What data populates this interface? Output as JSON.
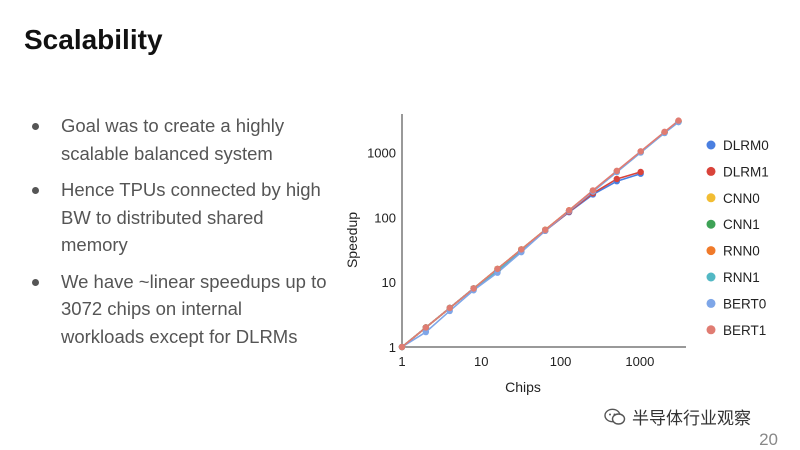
{
  "slide": {
    "title": "Scalability",
    "bullets": [
      "Goal was to create a highly scalable balanced system",
      "Hence TPUs connected by high BW to distributed shared memory",
      "We have ~linear speedups up to 3072 chips on internal workloads except for DLRMs"
    ],
    "page_number": "20",
    "watermark": "半导体行业观察"
  },
  "chart_data": {
    "type": "line",
    "xlabel": "Chips",
    "ylabel": "Speedup",
    "xscale": "log",
    "yscale": "log",
    "xlim": [
      1,
      3400
    ],
    "ylim": [
      1,
      3400
    ],
    "xticks": [
      1,
      10,
      100,
      1000
    ],
    "yticks": [
      1,
      10,
      100,
      1000
    ],
    "xtick_labels": [
      "1",
      "10",
      "100",
      "1000"
    ],
    "ytick_labels": [
      "1",
      "10",
      "100",
      "1000"
    ],
    "grid": false,
    "legend_position": "right",
    "series": [
      {
        "name": "DLRM0",
        "color": "#4a7fe0",
        "x": [
          1,
          2,
          4,
          8,
          16,
          32,
          64,
          128,
          256,
          512,
          1024
        ],
        "y": [
          1,
          2,
          4,
          8,
          15,
          30,
          62,
          120,
          225,
          360,
          470
        ]
      },
      {
        "name": "DLRM1",
        "color": "#d9433a",
        "x": [
          1,
          2,
          4,
          8,
          16,
          32,
          64,
          128,
          256,
          512,
          1024
        ],
        "y": [
          1,
          2,
          4,
          8,
          15,
          30,
          62,
          122,
          235,
          390,
          500
        ]
      },
      {
        "name": "CNN0",
        "color": "#f2bd33",
        "x": [
          1,
          2,
          4,
          8,
          16,
          32,
          64,
          128,
          256,
          512,
          1024,
          2048,
          3072
        ],
        "y": [
          1,
          2,
          4,
          8,
          16,
          32,
          64,
          128,
          256,
          512,
          1024,
          2048,
          3000
        ]
      },
      {
        "name": "CNN1",
        "color": "#3ea256",
        "x": [
          1,
          2,
          4,
          8,
          16,
          32,
          64,
          128,
          256,
          512,
          1024,
          2048,
          3072
        ],
        "y": [
          1,
          2,
          4,
          8,
          16,
          32,
          64,
          127,
          254,
          508,
          1015,
          2030,
          2980
        ]
      },
      {
        "name": "RNN0",
        "color": "#f07a2a",
        "x": [
          1,
          2,
          4,
          8,
          16,
          32,
          64,
          128,
          256,
          512,
          1024,
          2048,
          3072
        ],
        "y": [
          1,
          2,
          4,
          8,
          16,
          32,
          64,
          128,
          256,
          512,
          1024,
          2048,
          3050
        ]
      },
      {
        "name": "RNN1",
        "color": "#52b8c4",
        "x": [
          1,
          2,
          4,
          8,
          16,
          32,
          64,
          128,
          256,
          512,
          1024,
          2048,
          3072
        ],
        "y": [
          1,
          2,
          4,
          8,
          15,
          31,
          63,
          126,
          250,
          500,
          1000,
          2000,
          2950
        ]
      },
      {
        "name": "BERT0",
        "color": "#7ea6e8",
        "x": [
          1,
          2,
          4,
          8,
          16,
          32,
          64,
          128,
          256,
          512,
          1024,
          2048,
          3072
        ],
        "y": [
          1,
          1.7,
          3.6,
          7.5,
          14,
          29,
          62,
          125,
          250,
          500,
          1000,
          2000,
          2950
        ]
      },
      {
        "name": "BERT1",
        "color": "#e07c72",
        "x": [
          1,
          2,
          4,
          8,
          16,
          32,
          64,
          128,
          256,
          512,
          1024,
          2048,
          3072
        ],
        "y": [
          1,
          2,
          4,
          8,
          16,
          32,
          64,
          128,
          260,
          520,
          1040,
          2080,
          3100
        ]
      }
    ]
  }
}
